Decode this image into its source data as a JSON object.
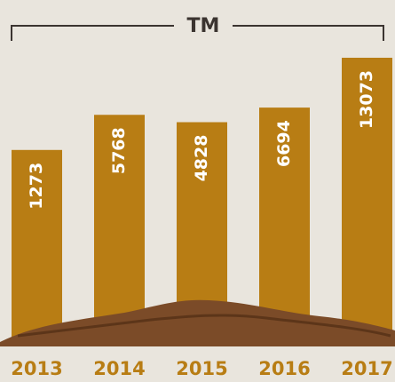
{
  "chart_data": {
    "type": "bar",
    "title": "TM",
    "categories": [
      "2013",
      "2014",
      "2015",
      "2016",
      "2017"
    ],
    "values": [
      1273,
      5768,
      4828,
      6694,
      13073
    ],
    "color": "#b87d14"
  }
}
